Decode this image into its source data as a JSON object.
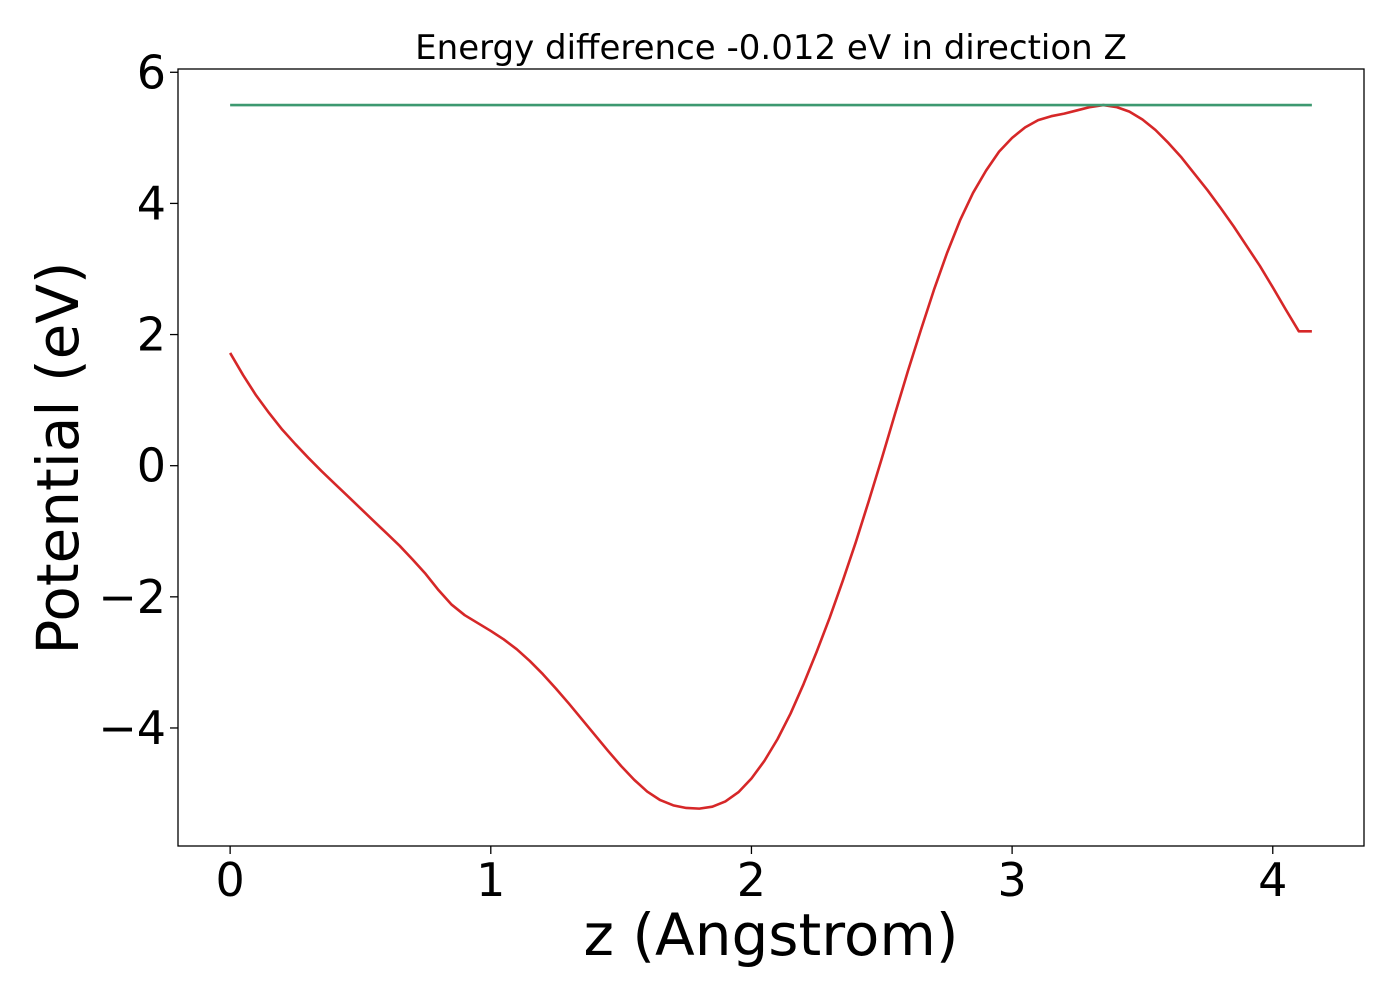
{
  "chart_data": {
    "type": "line",
    "title": "Energy difference -0.012 eV in direction Z",
    "xlabel": "z (Angstrom)",
    "ylabel": "Potential (eV)",
    "xlim": [
      -0.2,
      4.35
    ],
    "ylim": [
      -5.8,
      6.05
    ],
    "xticks": [
      0,
      1,
      2,
      3,
      4
    ],
    "xtick_labels": [
      "0",
      "1",
      "2",
      "3",
      "4"
    ],
    "yticks": [
      -4,
      -2,
      0,
      2,
      4,
      6
    ],
    "ytick_labels": [
      "−4",
      "−2",
      "0",
      "2",
      "4",
      "6"
    ],
    "grid": false,
    "series": [
      {
        "color": "#d62728",
        "x": [
          0.0,
          0.05,
          0.1,
          0.15,
          0.2,
          0.25,
          0.3,
          0.35,
          0.4,
          0.45,
          0.5,
          0.55,
          0.6,
          0.65,
          0.7,
          0.75,
          0.8,
          0.85,
          0.9,
          0.95,
          1.0,
          1.05,
          1.1,
          1.15,
          1.2,
          1.25,
          1.3,
          1.35,
          1.4,
          1.45,
          1.5,
          1.55,
          1.6,
          1.65,
          1.7,
          1.75,
          1.8,
          1.85,
          1.9,
          1.95,
          2.0,
          2.05,
          2.1,
          2.15,
          2.2,
          2.25,
          2.3,
          2.35,
          2.4,
          2.45,
          2.5,
          2.55,
          2.6,
          2.65,
          2.7,
          2.75,
          2.8,
          2.85,
          2.9,
          2.95,
          3.0,
          3.05,
          3.1,
          3.15,
          3.2,
          3.25,
          3.3,
          3.35,
          3.4,
          3.45,
          3.5,
          3.55,
          3.6,
          3.65,
          3.7,
          3.75,
          3.8,
          3.85,
          3.9,
          3.95,
          4.0,
          4.05,
          4.1,
          4.15
        ],
        "y": [
          1.72,
          1.38,
          1.07,
          0.8,
          0.55,
          0.33,
          0.12,
          -0.08,
          -0.27,
          -0.46,
          -0.65,
          -0.84,
          -1.03,
          -1.22,
          -1.43,
          -1.65,
          -1.9,
          -2.12,
          -2.28,
          -2.4,
          -2.52,
          -2.65,
          -2.8,
          -2.98,
          -3.18,
          -3.4,
          -3.63,
          -3.87,
          -4.11,
          -4.35,
          -4.58,
          -4.79,
          -4.97,
          -5.1,
          -5.18,
          -5.22,
          -5.23,
          -5.2,
          -5.12,
          -4.98,
          -4.77,
          -4.5,
          -4.17,
          -3.78,
          -3.33,
          -2.84,
          -2.32,
          -1.76,
          -1.17,
          -0.54,
          0.11,
          0.78,
          1.44,
          2.07,
          2.68,
          3.24,
          3.74,
          4.16,
          4.5,
          4.79,
          5.0,
          5.16,
          5.27,
          5.33,
          5.37,
          5.42,
          5.47,
          5.5,
          5.47,
          5.4,
          5.28,
          5.12,
          4.92,
          4.7,
          4.45,
          4.2,
          3.93,
          3.65,
          3.35,
          3.05,
          2.72,
          2.38,
          2.05,
          2.05
        ]
      },
      {
        "color": "#3d9970",
        "x": [
          0.0,
          4.15
        ],
        "y": [
          5.5,
          5.5
        ]
      }
    ]
  }
}
